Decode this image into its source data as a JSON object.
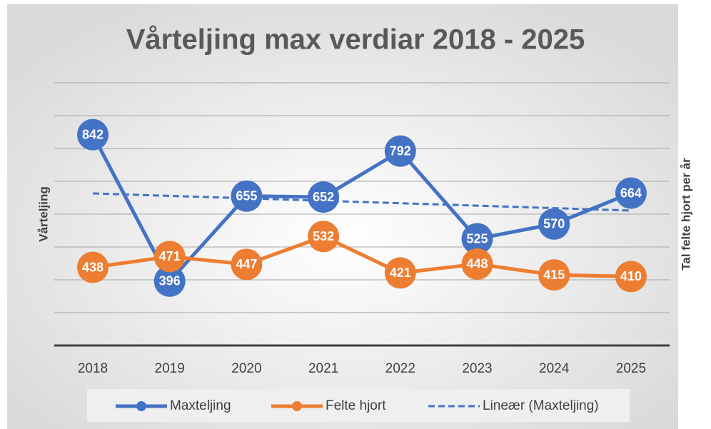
{
  "chart_data": {
    "type": "line",
    "title": "Vårteljing max verdiar 2018 - 2025",
    "y_label": "Vårteljing",
    "y2_label": "Tal felte hjort per år",
    "categories": [
      "2018",
      "2019",
      "2020",
      "2021",
      "2022",
      "2023",
      "2024",
      "2025"
    ],
    "series": [
      {
        "name": "Maxteljing",
        "color": "#4472c4",
        "values": [
          842,
          396,
          655,
          652,
          792,
          525,
          570,
          664
        ]
      },
      {
        "name": "Felte hjort",
        "color": "#ed7d31",
        "values": [
          438,
          471,
          447,
          532,
          421,
          448,
          415,
          410
        ]
      }
    ],
    "trendline": {
      "name": "Lineær (Maxteljing)",
      "color": "#4472c4"
    },
    "ylim": [
      200,
      1000
    ],
    "yticks": [
      200,
      300,
      400,
      500,
      600,
      700,
      800,
      900,
      1000
    ],
    "grid": true,
    "legend": "bottom"
  }
}
